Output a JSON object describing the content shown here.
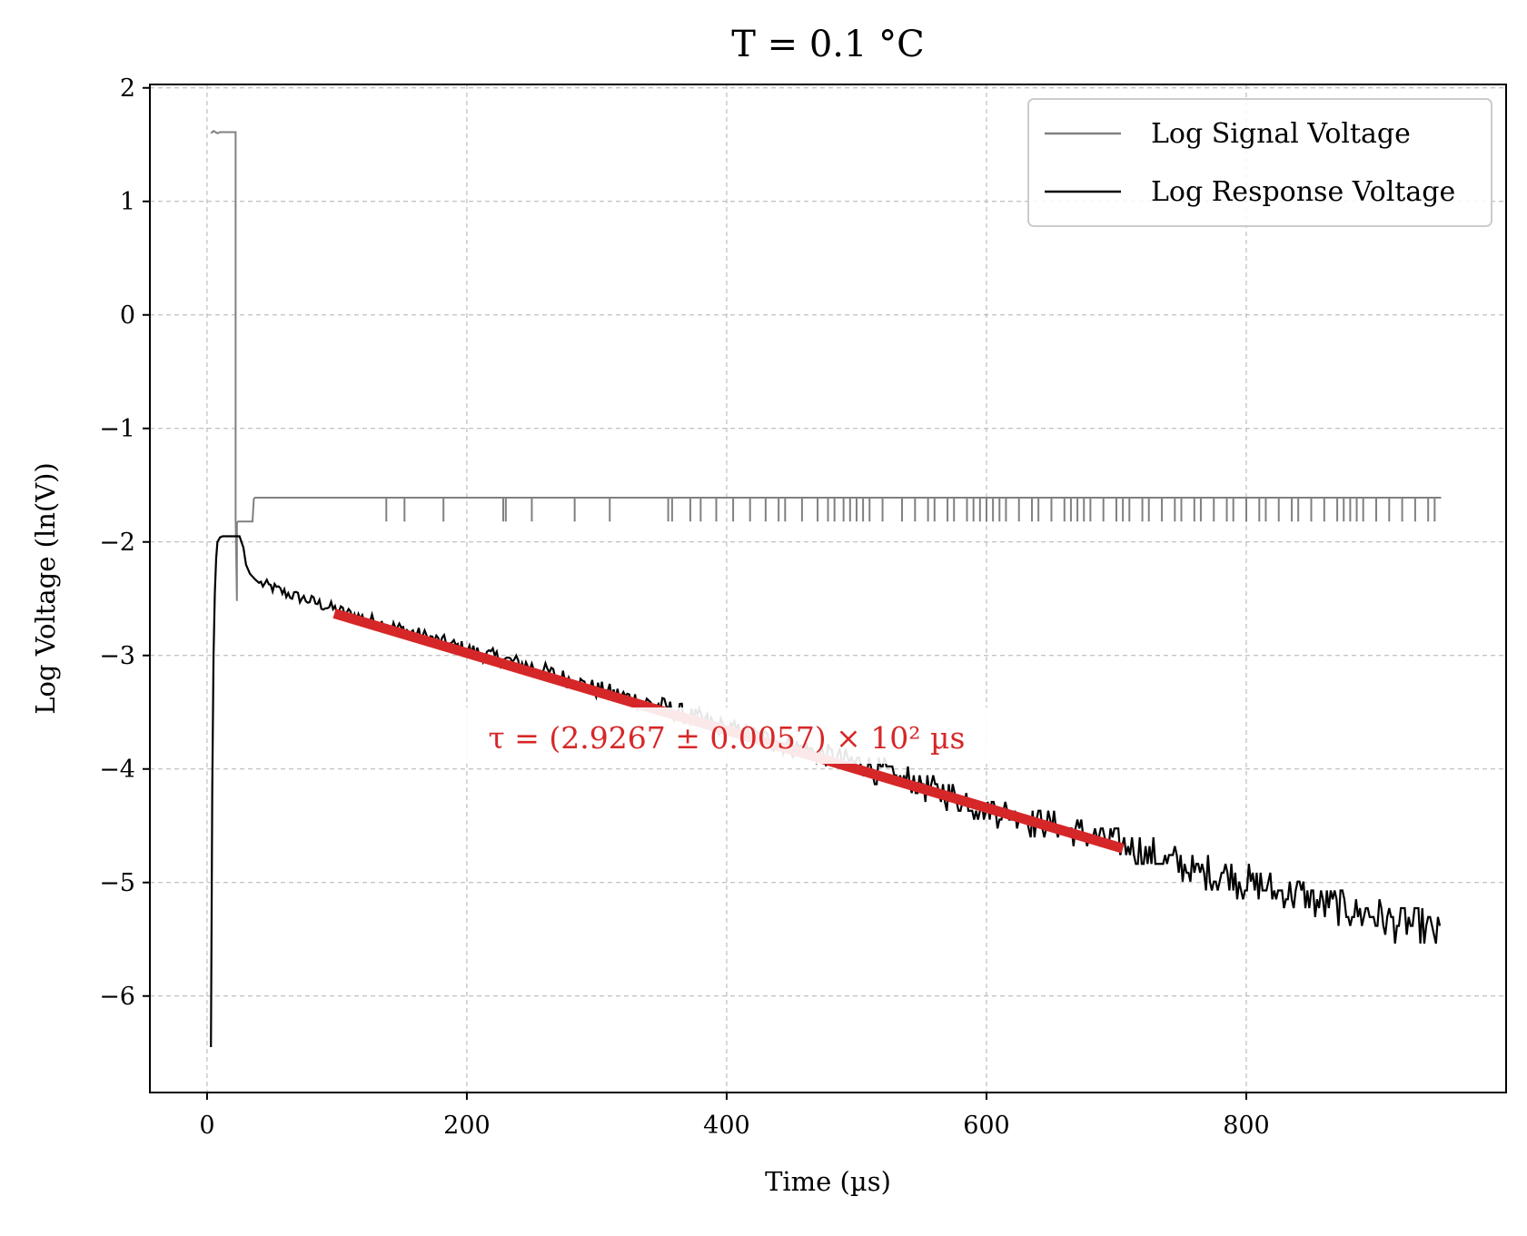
{
  "chart_data": {
    "type": "line",
    "title": "T = 0.1 °C",
    "xlabel": "Time (µs)",
    "ylabel": "Log Voltage (ln(V))",
    "xlim": [
      -44,
      1000
    ],
    "ylim": [
      -6.85,
      2.03
    ],
    "xticks": [
      0,
      200,
      400,
      600,
      800
    ],
    "yticks": [
      2,
      1,
      0,
      -1,
      -2,
      -3,
      -4,
      -5,
      -6
    ],
    "xtick_labels": [
      "0",
      "200",
      "400",
      "600",
      "800"
    ],
    "ytick_labels": [
      "2",
      "1",
      "0",
      "−1",
      "−2",
      "−3",
      "−4",
      "−5",
      "−6"
    ],
    "grid": true,
    "legend": "top-right",
    "series": [
      {
        "name": "Log Signal Voltage",
        "color": "#808080",
        "x": [
          3,
          5,
          8,
          10,
          15,
          20,
          22,
          22,
          23,
          23,
          24,
          25,
          26,
          35,
          36,
          37,
          38,
          40,
          50,
          100,
          200,
          300,
          400,
          500,
          600,
          700,
          800,
          900,
          950
        ],
        "y": [
          1.6,
          1.62,
          1.6,
          1.61,
          1.61,
          1.61,
          1.61,
          -1.8,
          -2.52,
          -1.83,
          -1.82,
          -1.82,
          -1.82,
          -1.82,
          -1.62,
          -1.61,
          -1.61,
          -1.61,
          -1.61,
          -1.61,
          -1.61,
          -1.61,
          -1.61,
          -1.61,
          -1.61,
          -1.61,
          -1.61,
          -1.61,
          -1.61
        ],
        "dropouts_x": [
          138,
          152,
          182,
          228,
          230,
          250,
          283,
          310,
          355,
          358,
          372,
          380,
          392,
          405,
          418,
          430,
          440,
          445,
          458,
          470,
          478,
          483,
          490,
          495,
          500,
          505,
          510,
          520,
          535,
          545,
          555,
          560,
          570,
          575,
          585,
          590,
          595,
          600,
          605,
          610,
          615,
          625,
          635,
          640,
          650,
          660,
          665,
          670,
          675,
          680,
          690,
          700,
          705,
          710,
          720,
          725,
          735,
          745,
          750,
          760,
          765,
          775,
          785,
          790,
          800,
          810,
          815,
          825,
          835,
          840,
          850,
          860,
          870,
          875,
          880,
          885,
          890,
          900,
          910,
          920,
          930,
          940,
          945
        ],
        "dropout_y": -1.82
      },
      {
        "name": "Log Response Voltage",
        "color": "#000000",
        "x": [
          3,
          4,
          5,
          6,
          7,
          8,
          10,
          12,
          15,
          20,
          25,
          28,
          30,
          33,
          37,
          40,
          50,
          60,
          80,
          100,
          120,
          150,
          200,
          250,
          300,
          350,
          400,
          450,
          500,
          550,
          600,
          650,
          700,
          750,
          800,
          850,
          900,
          950
        ],
        "y": [
          -6.45,
          -4.2,
          -3.0,
          -2.45,
          -2.15,
          -2.0,
          -1.96,
          -1.95,
          -1.95,
          -1.95,
          -1.95,
          -2.05,
          -2.2,
          -2.28,
          -2.33,
          -2.36,
          -2.4,
          -2.45,
          -2.52,
          -2.6,
          -2.67,
          -2.77,
          -2.95,
          -3.1,
          -3.3,
          -3.45,
          -3.65,
          -3.8,
          -3.95,
          -4.15,
          -4.35,
          -4.5,
          -4.65,
          -4.85,
          -5.0,
          -5.15,
          -5.3,
          -5.45
        ],
        "noise_amplitude": 0.05
      }
    ],
    "fit": {
      "color": "#d62728",
      "x": [
        98,
        705
      ],
      "y": [
        -2.63,
        -4.7
      ]
    },
    "annotation": {
      "text": "τ = (2.9267 ± 0.0057) × 10² µs",
      "x": 400,
      "y": -3.73,
      "color": "#d62728"
    }
  }
}
